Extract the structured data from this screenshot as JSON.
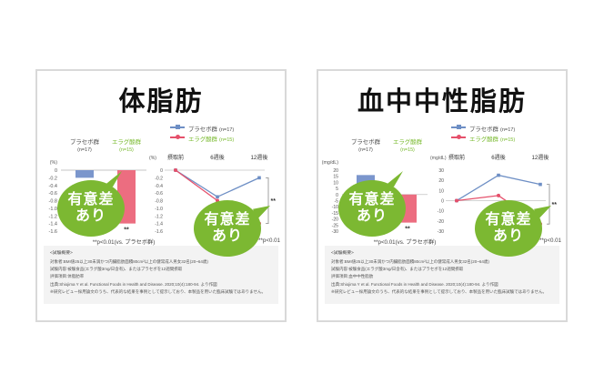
{
  "colors": {
    "bubble": "#7cb832",
    "placebo_bar": "#7b96cc",
    "ellagic_bar": "#ec6d80",
    "placebo_line": "#6e8fc5",
    "ellagic_line": "#e5506b",
    "placebo_label": "#4a4a4a",
    "ellagic_label": "#76b82a"
  },
  "panels": [
    {
      "title": "体脂肪",
      "bubble_line1": "有意差",
      "bubble_line2": "あり",
      "footer": {
        "heading": "<試験概要>",
        "line1": "対象者:BMI値25以上30未満かつ内臓脂肪面積80cm²以上の健常成人男女32名(20~64歳)",
        "line2": "試験内容:被験食品(エラグ酸3mg/日含有)、またはプラセボを12週間摂取",
        "line3": "評価項目:体脂肪率",
        "line4": "出典:Shiojima Y et al. Functional Foods in Health and Disease. 2020;10(4):180-94. より作図",
        "line5": "※研究レビュー採用論文のうち、代表的な結果を事例として提示しており、本製品を用いた臨床試験ではありません。"
      }
    },
    {
      "title": "血中中性脂肪",
      "bubble_line1": "有意差",
      "bubble_line2": "あり",
      "footer": {
        "heading": "<試験概要>",
        "line1": "対象者:BMI値25以上30未満かつ内臓脂肪面積80cm²以上の健常成人男女32名(20~64歳)",
        "line2": "試験内容:被験食品(エラグ酸3mg/日含有)、またはプラセボを12週間摂取",
        "line3": "評価項目:血中中性脂肪",
        "line4": "出典:Shiojima Y et al. Functional Foods in Health and Disease. 2020;10(4):180-94. より作図",
        "line5": "※研究レビュー採用論文のうち、代表的な結果を事例として提示しており、本製品を用いた臨床試験ではありません。"
      }
    }
  ],
  "chart_data": [
    {
      "type": "bar",
      "title": "体脂肪",
      "unit": "(%)",
      "ylabel": "(%)",
      "categories": [
        "プラセボ群",
        "エラグ酸群"
      ],
      "ns": [
        "(n=17)",
        "(n=15)"
      ],
      "values": [
        -0.2,
        -1.4
      ],
      "colors": [
        "#7b96cc",
        "#ec6d80"
      ],
      "label_colors": [
        "#4a4a4a",
        "#76b82a"
      ],
      "ylim": [
        -1.6,
        0
      ],
      "yticks": [
        "0",
        "-0.2",
        "-0.4",
        "-0.6",
        "-0.8",
        "-1.0",
        "-1.2",
        "-1.4",
        "-1.6"
      ],
      "sig": "**",
      "caption": "**p<0.01(vs. プラセボ群)"
    },
    {
      "type": "line",
      "title": "体脂肪",
      "unit": "(%)",
      "ylabel": "(%)",
      "x": [
        "摂取前",
        "6週後",
        "12週後"
      ],
      "series": [
        {
          "name": "プラセボ群",
          "n": "(n=17)",
          "color": "#6e8fc5",
          "label_color": "#4a4a4a",
          "marker": "square",
          "values": [
            0,
            -0.7,
            -0.2
          ]
        },
        {
          "name": "エラグ酸群",
          "n": "(n=15)",
          "color": "#e5506b",
          "label_color": "#76b82a",
          "marker": "circle",
          "values": [
            0,
            -0.8,
            -1.4
          ]
        }
      ],
      "ylim": [
        -1.6,
        0
      ],
      "yticks": [
        "0",
        "-0.2",
        "-0.4",
        "-0.6",
        "-0.8",
        "-1.0",
        "-1.2",
        "-1.4",
        "-1.6"
      ],
      "legend_position": "top",
      "grid": false,
      "sig": "**",
      "caption": "**p<0.01"
    },
    {
      "type": "bar",
      "title": "血中中性脂肪",
      "unit": "(mg/dL)",
      "ylabel": "(mg/dL)",
      "categories": [
        "プラセボ群",
        "エラグ酸群"
      ],
      "ns": [
        "(n=17)",
        "(n=15)"
      ],
      "values": [
        16,
        -23
      ],
      "colors": [
        "#7b96cc",
        "#ec6d80"
      ],
      "label_colors": [
        "#4a4a4a",
        "#76b82a"
      ],
      "ylim": [
        -30,
        20
      ],
      "yticks": [
        "20",
        "15",
        "10",
        "5",
        "0",
        "-5",
        "-10",
        "-15",
        "-20",
        "-25",
        "-30"
      ],
      "sig": "**",
      "caption": "**p<0.01(vs. プラセボ群)"
    },
    {
      "type": "line",
      "title": "血中中性脂肪",
      "unit": "(mg/dL)",
      "ylabel": "(mg/dL)",
      "x": [
        "摂取前",
        "6週後",
        "12週後"
      ],
      "series": [
        {
          "name": "プラセボ群",
          "n": "(n=17)",
          "color": "#6e8fc5",
          "label_color": "#4a4a4a",
          "marker": "square",
          "values": [
            0,
            25,
            16
          ]
        },
        {
          "name": "エラグ酸群",
          "n": "(n=15)",
          "color": "#e5506b",
          "label_color": "#76b82a",
          "marker": "circle",
          "values": [
            0,
            5,
            -23
          ]
        }
      ],
      "ylim": [
        -30,
        30
      ],
      "yticks": [
        "30",
        "20",
        "10",
        "0",
        "-10",
        "-20",
        "-30"
      ],
      "legend_position": "top",
      "grid": false,
      "sig": "**",
      "caption": "**p<0.01"
    }
  ]
}
